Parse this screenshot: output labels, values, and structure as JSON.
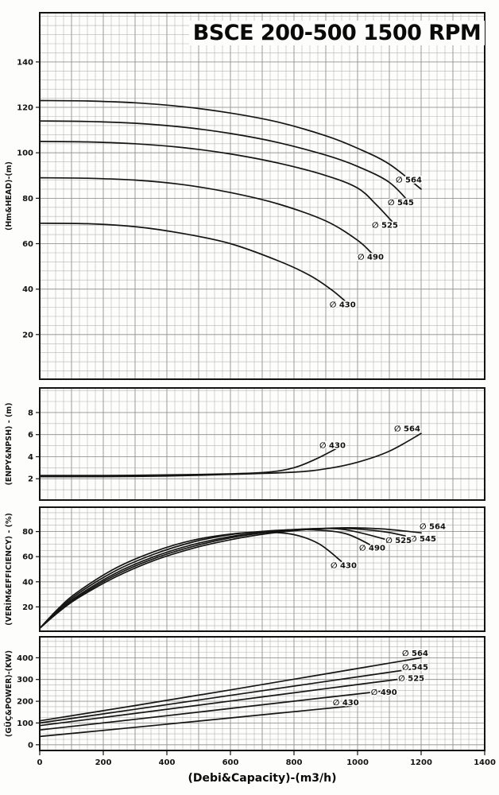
{
  "title": "BSCE 200-500 1500 RPM",
  "xlabel": "(Debi&Capacity)-(m3/h)",
  "x_ticks": [
    0,
    200,
    400,
    600,
    800,
    1000,
    1200,
    1400
  ],
  "chart_data": [
    {
      "type": "line",
      "name": "head",
      "title": "BSCE 200-500 1500 RPM",
      "ylabel": "(Hm&HEAD)-(m)",
      "xlabel": "(Debi&Capacity)-(m3/h)",
      "xlim": [
        0,
        1400
      ],
      "ylim": [
        0,
        162
      ],
      "yticks": [
        20,
        40,
        60,
        80,
        100,
        120,
        140
      ],
      "grid": {
        "x_step": 25,
        "y_step": 4
      },
      "series": [
        {
          "name": "∅ 564",
          "x": [
            0,
            150,
            300,
            450,
            600,
            750,
            900,
            1000,
            1100,
            1200
          ],
          "y": [
            123,
            122.8,
            122,
            120.3,
            117.5,
            113.5,
            107.5,
            102,
            95,
            84
          ],
          "label": {
            "x": 1120,
            "y": 87
          }
        },
        {
          "name": "∅ 545",
          "x": [
            0,
            150,
            300,
            450,
            600,
            750,
            900,
            1000,
            1100,
            1170
          ],
          "y": [
            114,
            113.8,
            113,
            111.3,
            108.5,
            104.5,
            99,
            94,
            87,
            77
          ],
          "label": {
            "x": 1095,
            "y": 77
          }
        },
        {
          "name": "∅ 525",
          "x": [
            0,
            150,
            300,
            450,
            600,
            750,
            900,
            1000,
            1060,
            1120
          ],
          "y": [
            105,
            104.8,
            104,
            102.3,
            99.5,
            95.5,
            90,
            84.5,
            77,
            68
          ],
          "label": {
            "x": 1045,
            "y": 67
          }
        },
        {
          "name": "∅ 490",
          "x": [
            0,
            150,
            300,
            450,
            600,
            750,
            900,
            1000,
            1050
          ],
          "y": [
            89,
            88.8,
            88,
            86,
            82.5,
            77.5,
            70,
            61.5,
            55
          ],
          "label": {
            "x": 1000,
            "y": 53
          }
        },
        {
          "name": "∅ 430",
          "x": [
            0,
            150,
            300,
            450,
            600,
            750,
            850,
            920,
            975
          ],
          "y": [
            69,
            68.8,
            67.5,
            64.5,
            60,
            52.5,
            46,
            39.5,
            33
          ],
          "label": {
            "x": 912,
            "y": 32
          }
        }
      ]
    },
    {
      "type": "line",
      "name": "npsh",
      "ylabel": "(ENPY&NPSH) - (m)",
      "xlim": [
        0,
        1400
      ],
      "ylim": [
        0,
        10.3
      ],
      "yticks": [
        2,
        4,
        6,
        8
      ],
      "grid": {
        "x_step": 25,
        "y_step": 1
      },
      "series": [
        {
          "name": "∅ 430",
          "x": [
            0,
            200,
            400,
            600,
            720,
            800,
            870,
            950
          ],
          "y": [
            2.3,
            2.3,
            2.35,
            2.45,
            2.6,
            3.0,
            3.8,
            5.0
          ],
          "label": {
            "x": 880,
            "y": 4.8
          }
        },
        {
          "name": "∅ 564",
          "x": [
            0,
            200,
            400,
            600,
            800,
            900,
            1000,
            1100,
            1200
          ],
          "y": [
            2.2,
            2.2,
            2.25,
            2.4,
            2.6,
            2.9,
            3.5,
            4.5,
            6.1
          ],
          "label": {
            "x": 1115,
            "y": 6.3
          }
        }
      ]
    },
    {
      "type": "line",
      "name": "efficiency",
      "ylabel": "(VERİM&EFFICIENCY) - (%)",
      "xlim": [
        0,
        1400
      ],
      "ylim": [
        0,
        100
      ],
      "yticks": [
        20,
        40,
        60,
        80
      ],
      "grid": {
        "x_step": 25,
        "y_step": 5
      },
      "series": [
        {
          "name": "∅ 564",
          "x": [
            0,
            60,
            120,
            240,
            360,
            480,
            600,
            720,
            840,
            960,
            1080,
            1200
          ],
          "y": [
            3,
            16,
            27,
            44,
            57,
            66.5,
            73.5,
            78.5,
            81.5,
            83,
            82,
            79
          ],
          "label": {
            "x": 1195,
            "y": 82
          }
        },
        {
          "name": "∅ 545",
          "x": [
            0,
            60,
            120,
            240,
            360,
            480,
            600,
            720,
            840,
            960,
            1080,
            1150
          ],
          "y": [
            3,
            16.5,
            28,
            45.5,
            58.5,
            68,
            75,
            79.5,
            82,
            82.5,
            80,
            76.5
          ],
          "label": {
            "x": 1165,
            "y": 72
          }
        },
        {
          "name": "∅ 525",
          "x": [
            0,
            60,
            120,
            240,
            360,
            480,
            600,
            720,
            840,
            960,
            1100
          ],
          "y": [
            3,
            17,
            29,
            47,
            60,
            69.5,
            76,
            80,
            82,
            81.5,
            73
          ],
          "label": {
            "x": 1088,
            "y": 71
          }
        },
        {
          "name": "∅ 490",
          "x": [
            0,
            60,
            120,
            240,
            360,
            480,
            600,
            720,
            840,
            960,
            1050
          ],
          "y": [
            3,
            18,
            30.5,
            49,
            62,
            71.5,
            77.5,
            80.5,
            81.5,
            78.5,
            68
          ],
          "label": {
            "x": 1005,
            "y": 65
          }
        },
        {
          "name": "∅ 430",
          "x": [
            0,
            60,
            120,
            240,
            360,
            480,
            600,
            700,
            800,
            880,
            950
          ],
          "y": [
            3,
            19,
            32,
            51,
            64,
            73,
            78,
            79.5,
            77.5,
            70,
            56
          ],
          "label": {
            "x": 915,
            "y": 51
          }
        }
      ]
    },
    {
      "type": "line",
      "name": "power",
      "ylabel": "(GÜÇ&POWER)-(KW)",
      "xlim": [
        0,
        1400
      ],
      "ylim": [
        -30,
        500
      ],
      "yticks": [
        0,
        100,
        200,
        300,
        400
      ],
      "grid": {
        "x_step": 25,
        "y_step": 25
      },
      "series": [
        {
          "name": "∅ 564",
          "x": [
            0,
            300,
            600,
            900,
            1200
          ],
          "y": [
            110,
            180,
            252,
            326,
            400
          ],
          "label": {
            "x": 1140,
            "y": 408
          }
        },
        {
          "name": "∅ 545",
          "x": [
            0,
            300,
            600,
            900,
            1180
          ],
          "y": [
            100,
            163,
            227,
            291,
            350
          ],
          "label": {
            "x": 1140,
            "y": 345
          }
        },
        {
          "name": "∅ 525",
          "x": [
            0,
            300,
            600,
            900,
            1140
          ],
          "y": [
            88,
            144,
            201,
            258,
            303
          ],
          "label": {
            "x": 1128,
            "y": 293
          }
        },
        {
          "name": "∅ 490",
          "x": [
            0,
            300,
            600,
            900,
            1100
          ],
          "y": [
            68,
            117,
            167,
            217,
            250
          ],
          "label": {
            "x": 1042,
            "y": 230
          }
        },
        {
          "name": "∅ 430",
          "x": [
            0,
            250,
            500,
            750,
            980
          ],
          "y": [
            38,
            73,
            109,
            145,
            178
          ],
          "label": {
            "x": 922,
            "y": 182
          }
        }
      ]
    }
  ]
}
